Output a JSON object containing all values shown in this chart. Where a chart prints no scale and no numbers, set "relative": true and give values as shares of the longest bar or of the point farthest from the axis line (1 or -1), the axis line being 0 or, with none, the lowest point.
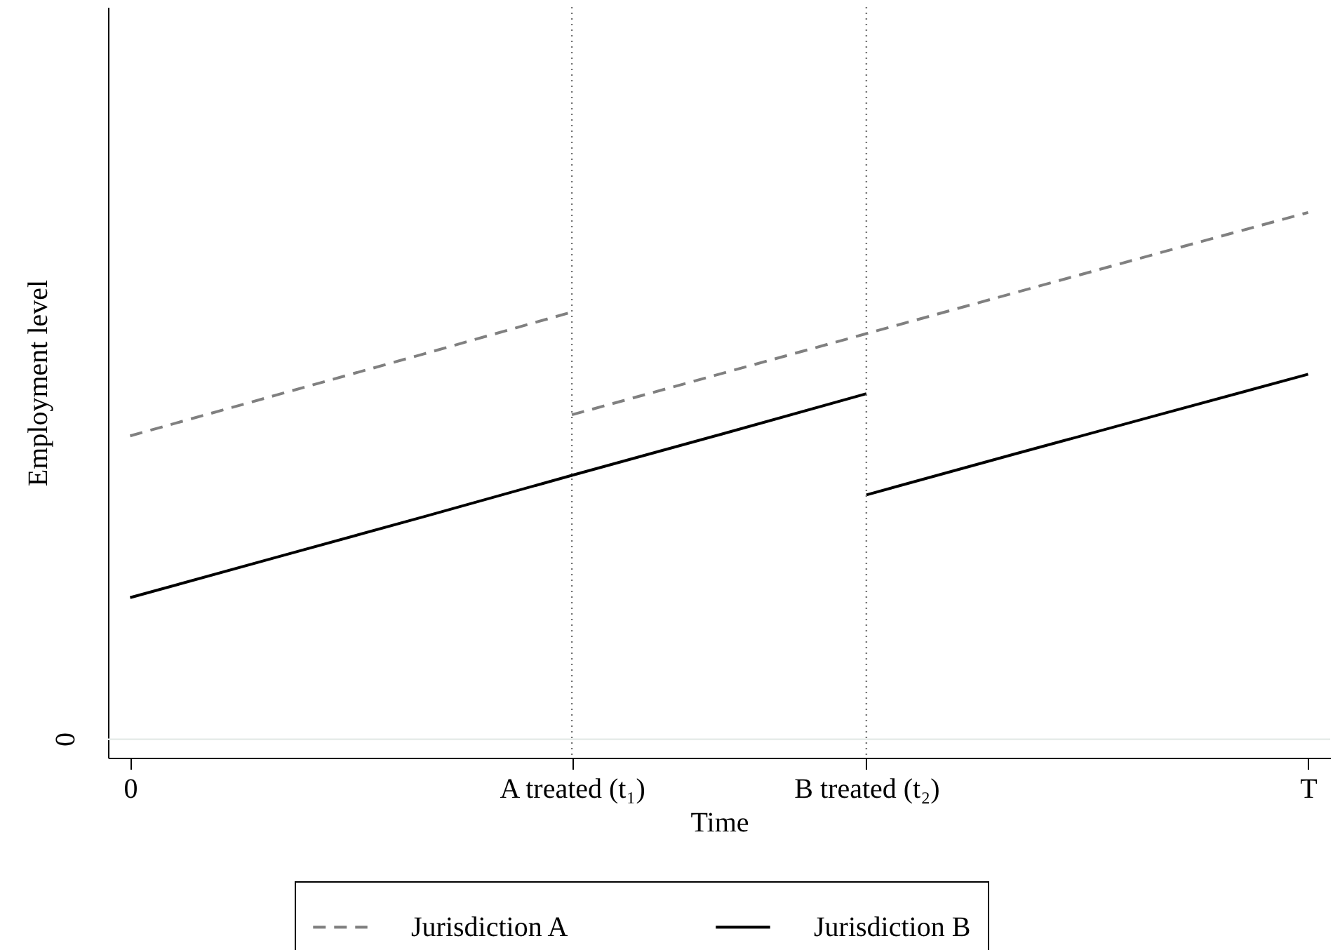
{
  "chart_data": {
    "type": "line",
    "relative": true,
    "xlabel": "Time",
    "ylabel": "Employment level",
    "categories": [
      "0",
      null,
      null,
      "A treated (t₁)",
      null,
      "B treated (t₂)",
      null,
      null,
      "T"
    ],
    "series": [
      {
        "name": "Jurisdiction A",
        "color": "#808080",
        "line_style": "dashed",
        "values": [
          0.576,
          0.654,
          0.732,
          0.811,
          null,
          null,
          null,
          null,
          null
        ]
      },
      {
        "color": "#808080",
        "line_style": "dashed",
        "values": [
          null,
          null,
          null,
          0.616,
          0.693,
          0.77,
          0.847,
          0.924,
          1
        ]
      },
      {
        "name": "Jurisdiction B",
        "color": "#000000",
        "line_style": "solid",
        "values": [
          0.269,
          0.346,
          0.423,
          0.501,
          0.578,
          0.656,
          null,
          null,
          null
        ]
      },
      {
        "color": "#000000",
        "line_style": "solid",
        "values": [
          null,
          null,
          null,
          null,
          null,
          0.464,
          0.541,
          0.617,
          0.693
        ]
      }
    ],
    "ref_lines": [
      {
        "axis": "y",
        "value": 0,
        "color": "#e6ece9",
        "line_style": "solid"
      },
      {
        "axis": "x",
        "value": "A treated (t₁)",
        "color": "#777777",
        "line_style": "dotted"
      },
      {
        "axis": "x",
        "value": "B treated (t₂)",
        "color": "#777777",
        "line_style": "dotted"
      }
    ],
    "annotations": [
      "0"
    ],
    "legend": "bottom"
  }
}
